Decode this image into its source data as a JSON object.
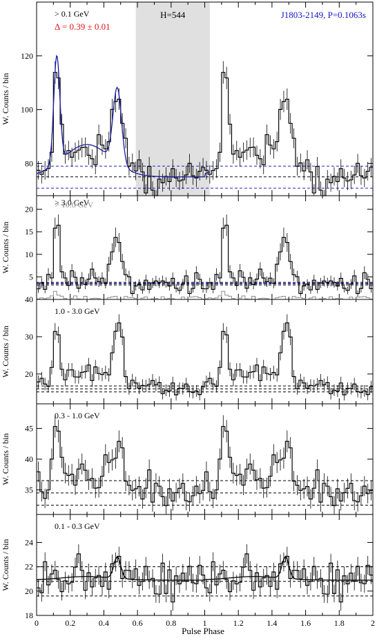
{
  "figure": {
    "x_axis_label": "Pulse Phase",
    "y_axis_label": "W. Counts / bin"
  },
  "colors": {
    "data": "#000000",
    "fit": "#1a1aa6",
    "source": "#1515c8",
    "delta": "#e0141e",
    "background_line": "#2020c8",
    "off_pulse_shade": "#e0e0e0",
    "high_energy": "#8c8c8c"
  },
  "chart_data": [
    {
      "type": "line",
      "panel": "total",
      "energy_label": "> 0.1 GeV",
      "delta_label": "Δ = 0.39 ± 0.01",
      "h_label": "H=544",
      "source_label": "J1803-2149, P=0.1063s",
      "xlim": [
        0,
        2
      ],
      "ylim": [
        68,
        140
      ],
      "yticks": [
        80,
        100,
        120
      ],
      "off_pulse": [
        0.59,
        1.03
      ],
      "background_levels": [
        75.0
      ],
      "background_band": [
        79.0,
        70.8
      ],
      "profile": {
        "peaks": [
          {
            "phase": 0.12,
            "height": 40,
            "width": 0.018
          },
          {
            "phase": 0.48,
            "height": 28,
            "width": 0.025
          }
        ],
        "bridge": {
          "phase": 0.3,
          "height": 12,
          "width": 0.14
        },
        "base": 75.0,
        "noise": 3.4,
        "seed": 3
      },
      "fit_line": true
    },
    {
      "type": "line",
      "panel": "gt3",
      "energy_label": "> 3.0 GeV",
      "secondary_label": "> 10.0 GeV",
      "xlim": [
        0,
        2
      ],
      "ylim": [
        0,
        23
      ],
      "yticks": [
        5,
        10,
        15,
        20
      ],
      "background_levels": [
        3.5
      ],
      "background_band": [
        3.8,
        3.2
      ],
      "profile": {
        "peaks": [
          {
            "phase": 0.12,
            "height": 14.5,
            "width": 0.015
          },
          {
            "phase": 0.48,
            "height": 10.5,
            "width": 0.025
          }
        ],
        "bridge": {
          "phase": 0.3,
          "height": 1.2,
          "width": 0.12
        },
        "base": 3.5,
        "noise": 1.1,
        "seed": 7
      },
      "secondary_profile": {
        "peaks": [
          {
            "phase": 0.12,
            "height": 1.2,
            "width": 0.02
          }
        ],
        "base": 0.2,
        "noise": 0.35,
        "seed": 19
      }
    },
    {
      "type": "line",
      "panel": "1to3",
      "energy_label": "1.0 - 3.0 GeV",
      "xlim": [
        0,
        2
      ],
      "ylim": [
        12,
        40
      ],
      "yticks": [
        20,
        30,
        40
      ],
      "background_levels": [
        16.0
      ],
      "background_band": [
        16.8,
        15.2
      ],
      "profile": {
        "peaks": [
          {
            "phase": 0.12,
            "height": 14,
            "width": 0.02
          },
          {
            "phase": 0.49,
            "height": 17,
            "width": 0.025
          }
        ],
        "bridge": {
          "phase": 0.3,
          "height": 5.5,
          "width": 0.14
        },
        "base": 16.0,
        "noise": 1.6,
        "seed": 11
      }
    },
    {
      "type": "line",
      "panel": "0.3to1",
      "energy_label": "0.3 - 1.0 GeV",
      "xlim": [
        0,
        2
      ],
      "ylim": [
        31,
        49
      ],
      "yticks": [
        35,
        40,
        45
      ],
      "background_levels": [
        34.5
      ],
      "background_band": [
        36.5,
        32.5
      ],
      "profile": {
        "peaks": [
          {
            "phase": 0.12,
            "height": 9,
            "width": 0.02
          },
          {
            "phase": 0.49,
            "height": 7.5,
            "width": 0.025
          }
        ],
        "bridge": {
          "phase": 0.3,
          "height": 3,
          "width": 0.15
        },
        "base": 34.5,
        "noise": 1.6,
        "seed": 23
      }
    },
    {
      "type": "line",
      "panel": "0.1to0.3",
      "energy_label": "0.1 - 0.3 GeV",
      "xlim": [
        0,
        2
      ],
      "ylim": [
        18,
        26.3
      ],
      "yticks": [
        18,
        20,
        22,
        24
      ],
      "background_levels": [
        20.8
      ],
      "background_band": [
        22.0,
        19.6
      ],
      "profile": {
        "peaks": [
          {
            "phase": 0.48,
            "height": 1.8,
            "width": 0.02
          }
        ],
        "bridge": {
          "phase": 0.3,
          "height": 0.3,
          "width": 0.15
        },
        "base": 20.9,
        "noise": 0.75,
        "seed": 31
      },
      "fit_line": true,
      "fit_color": "black"
    }
  ]
}
